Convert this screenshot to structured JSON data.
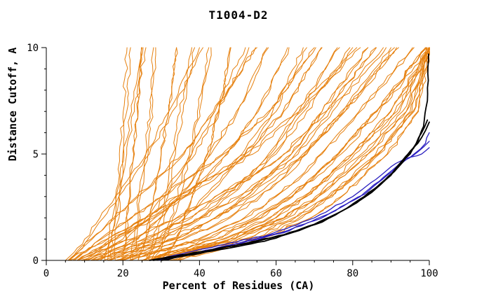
{
  "chart_data": {
    "type": "line",
    "title": "T1004-D2",
    "xlabel": "Percent of Residues (CA)",
    "ylabel": "Distance Cutoff, A",
    "xlim": [
      0,
      100
    ],
    "ylim": [
      0,
      10
    ],
    "grid": false,
    "legend": "none",
    "x_ticks": {
      "values": [
        0,
        20,
        40,
        60,
        80,
        100
      ],
      "labels": [
        "0",
        "20",
        "40",
        "60",
        "80",
        "100"
      ],
      "minor": [
        5,
        10,
        15,
        25,
        30,
        35,
        45,
        50,
        55,
        65,
        70,
        75,
        85,
        90,
        95
      ]
    },
    "y_ticks": {
      "values": [
        0,
        5,
        10
      ],
      "labels": [
        "0",
        "5",
        "10"
      ],
      "minor": [
        1,
        2,
        3,
        4,
        6,
        7,
        8,
        9
      ]
    },
    "y_levels": [
      0,
      1,
      2,
      3,
      4,
      5,
      7,
      10
    ],
    "series_groups": [
      {
        "name": "server-models",
        "color": "#e6800e",
        "width": 1,
        "jitter": 5,
        "echo": true,
        "curves": [
          [
            18,
            18,
            19,
            19,
            20,
            20,
            21,
            22
          ],
          [
            20,
            21,
            21,
            22,
            22,
            23,
            24,
            25
          ],
          [
            22,
            23,
            24,
            24,
            25,
            26,
            27,
            28
          ],
          [
            16,
            17,
            18,
            19,
            20,
            21,
            23,
            26
          ],
          [
            24,
            26,
            27,
            28,
            29,
            30,
            32,
            34
          ],
          [
            26,
            28,
            30,
            31,
            32,
            33,
            35,
            38
          ],
          [
            28,
            31,
            33,
            35,
            36,
            38,
            40,
            43
          ],
          [
            30,
            34,
            36,
            38,
            40,
            42,
            45,
            48
          ],
          [
            10,
            20,
            26,
            30,
            34,
            38,
            44,
            52
          ],
          [
            12,
            24,
            30,
            35,
            39,
            43,
            50,
            58
          ],
          [
            8,
            18,
            28,
            36,
            42,
            47,
            55,
            63
          ],
          [
            14,
            28,
            36,
            42,
            47,
            52,
            60,
            68
          ],
          [
            6,
            16,
            26,
            34,
            44,
            52,
            62,
            72
          ],
          [
            16,
            30,
            40,
            47,
            53,
            58,
            66,
            76
          ],
          [
            10,
            26,
            38,
            46,
            54,
            60,
            68,
            80
          ],
          [
            18,
            34,
            44,
            52,
            58,
            64,
            72,
            84
          ],
          [
            12,
            28,
            40,
            50,
            58,
            65,
            74,
            88
          ],
          [
            20,
            36,
            48,
            56,
            63,
            68,
            78,
            92
          ],
          [
            8,
            22,
            34,
            44,
            54,
            62,
            73,
            86
          ],
          [
            15,
            32,
            44,
            53,
            60,
            67,
            77,
            90
          ],
          [
            22,
            40,
            52,
            60,
            67,
            72,
            82,
            96
          ],
          [
            25,
            44,
            56,
            64,
            70,
            76,
            86,
            99
          ],
          [
            20,
            42,
            55,
            64,
            71,
            77,
            87,
            100
          ],
          [
            28,
            48,
            60,
            68,
            74,
            80,
            90,
            100
          ],
          [
            24,
            46,
            58,
            67,
            74,
            80,
            91,
            100
          ],
          [
            30,
            50,
            63,
            71,
            77,
            83,
            93,
            100
          ],
          [
            26,
            48,
            62,
            71,
            78,
            84,
            94,
            100
          ],
          [
            32,
            54,
            66,
            74,
            80,
            86,
            95,
            100
          ],
          [
            28,
            52,
            65,
            74,
            81,
            87,
            96,
            100
          ],
          [
            34,
            56,
            69,
            77,
            83,
            89,
            97,
            100
          ],
          [
            5,
            10,
            14,
            18,
            22,
            26,
            32,
            40
          ],
          [
            6,
            12,
            18,
            24,
            30,
            36,
            44,
            55
          ],
          [
            7,
            14,
            22,
            30,
            38,
            46,
            58,
            70
          ],
          [
            9,
            18,
            27,
            36,
            45,
            54,
            66,
            82
          ]
        ]
      },
      {
        "name": "highlighted-models-blue",
        "color": "#2b20c0",
        "width": 1.3,
        "jitter": 2,
        "echo": false,
        "curves": [
          [
            [
              27,
              0
            ],
            [
              45,
              0.7
            ],
            [
              58,
              1.2
            ],
            [
              70,
              2
            ],
            [
              80,
              3
            ],
            [
              86,
              3.8
            ],
            [
              90,
              4.4
            ],
            [
              94,
              4.8
            ],
            [
              98,
              5
            ],
            [
              100,
              5.3
            ]
          ],
          [
            [
              30,
              0
            ],
            [
              50,
              0.8
            ],
            [
              63,
              1.4
            ],
            [
              74,
              2.2
            ],
            [
              83,
              3.1
            ],
            [
              89,
              4
            ],
            [
              93,
              4.6
            ],
            [
              97,
              5.1
            ],
            [
              100,
              5.6
            ]
          ],
          [
            [
              29,
              0
            ],
            [
              48,
              0.7
            ],
            [
              62,
              1.3
            ],
            [
              73,
              2.1
            ],
            [
              82,
              3
            ],
            [
              88,
              3.9
            ],
            [
              92,
              4.5
            ],
            [
              96,
              5
            ],
            [
              99,
              5.5
            ],
            [
              100,
              6
            ]
          ]
        ]
      },
      {
        "name": "highlighted-models-black",
        "color": "#000000",
        "width": 1.8,
        "jitter": 1.4,
        "echo": false,
        "curves": [
          [
            [
              27,
              0
            ],
            [
              40,
              0.4
            ],
            [
              52,
              0.8
            ],
            [
              62,
              1.2
            ],
            [
              70,
              1.7
            ],
            [
              77,
              2.3
            ],
            [
              83,
              3
            ],
            [
              88,
              3.7
            ],
            [
              92,
              4.4
            ],
            [
              95,
              5
            ],
            [
              97,
              5.6
            ],
            [
              98.5,
              6.3
            ],
            [
              99.5,
              7.5
            ],
            [
              99.8,
              9.7
            ]
          ],
          [
            [
              28,
              0
            ],
            [
              42,
              0.45
            ],
            [
              54,
              0.85
            ],
            [
              64,
              1.3
            ],
            [
              72,
              1.8
            ],
            [
              79,
              2.5
            ],
            [
              85,
              3.2
            ],
            [
              90,
              4
            ],
            [
              93,
              4.7
            ],
            [
              96,
              5.3
            ],
            [
              98,
              6
            ],
            [
              99.5,
              6.6
            ]
          ],
          [
            [
              30,
              0
            ],
            [
              45,
              0.5
            ],
            [
              57,
              0.9
            ],
            [
              66,
              1.4
            ],
            [
              74,
              2
            ],
            [
              81,
              2.7
            ],
            [
              86,
              3.4
            ],
            [
              91,
              4.2
            ],
            [
              94,
              4.9
            ],
            [
              97,
              5.5
            ],
            [
              99,
              6.1
            ],
            [
              100,
              6.5
            ]
          ]
        ]
      }
    ]
  }
}
